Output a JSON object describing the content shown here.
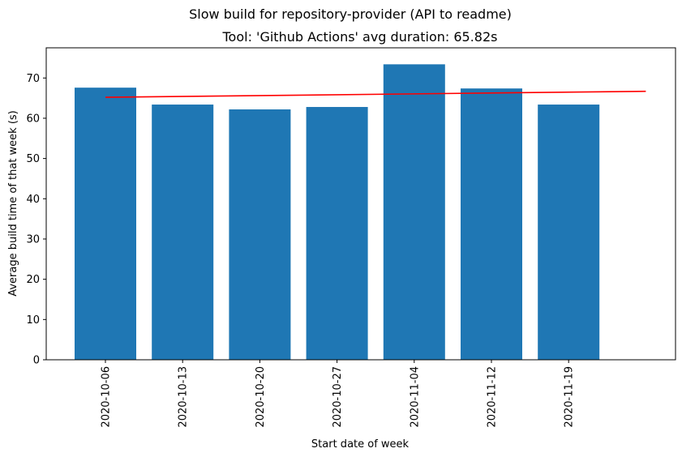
{
  "chart_data": {
    "type": "bar",
    "suptitle": "Slow build for repository-provider (API to readme)",
    "title": "Tool: 'Github Actions' avg duration: 65.82s",
    "xlabel": "Start date of week",
    "ylabel": "Average build time of that week (s)",
    "categories": [
      "2020-10-06",
      "2020-10-13",
      "2020-10-20",
      "2020-10-27",
      "2020-11-04",
      "2020-11-12",
      "2020-11-19"
    ],
    "values": [
      67.6,
      63.4,
      62.2,
      62.8,
      73.4,
      67.4,
      63.4
    ],
    "ylim": [
      0,
      77.5
    ],
    "yticks": [
      0,
      10,
      20,
      30,
      40,
      50,
      60,
      70
    ],
    "bar_color": "#1f77b4",
    "trend_line": {
      "color": "#ff0000",
      "start_value": 65.2,
      "end_value": 66.7
    },
    "grid": false,
    "legend": "none"
  }
}
